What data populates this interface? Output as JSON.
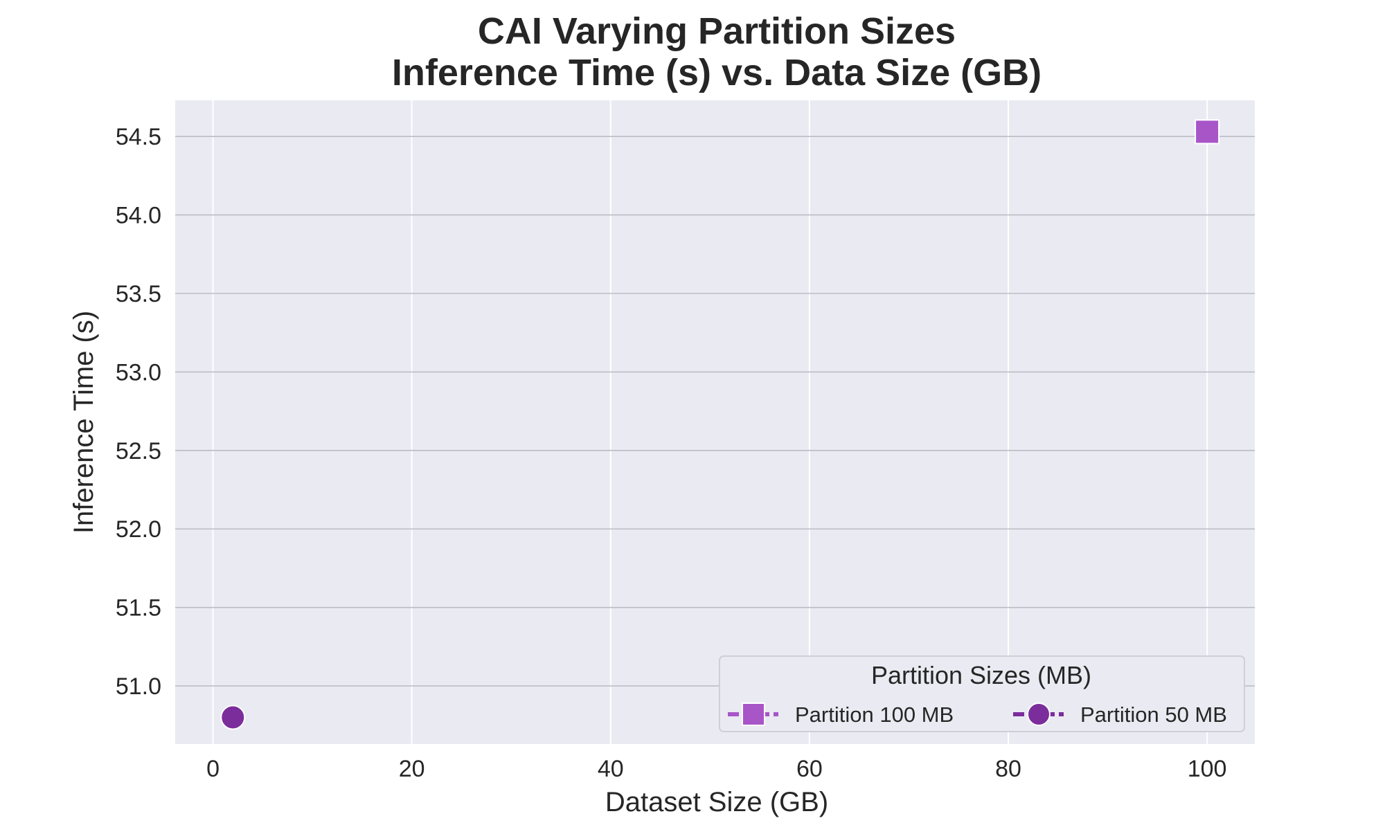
{
  "chart_data": {
    "type": "scatter",
    "title_lines": [
      "CAI Varying Partition Sizes",
      "Inference Time (s) vs. Data Size (GB)"
    ],
    "xlabel": "Dataset Size (GB)",
    "ylabel": "Inference Time (s)",
    "xlim": [
      -3.8,
      104.8
    ],
    "ylim": [
      50.63,
      54.73
    ],
    "x_ticks": [
      0,
      20,
      40,
      60,
      80,
      100
    ],
    "y_ticks": [
      51.0,
      51.5,
      52.0,
      52.5,
      53.0,
      53.5,
      54.0,
      54.5
    ],
    "x_tick_labels": [
      "0",
      "20",
      "40",
      "60",
      "80",
      "100"
    ],
    "y_tick_labels": [
      "51.0",
      "51.5",
      "52.0",
      "52.5",
      "53.0",
      "53.5",
      "54.0",
      "54.5"
    ],
    "grid": true,
    "legend": {
      "title": "Partition Sizes (MB)",
      "placement": "lower-right"
    },
    "series": [
      {
        "name": "Partition 100 MB",
        "marker": "square",
        "color": "#a855c8",
        "points": [
          {
            "x": 100,
            "y": 54.53
          }
        ]
      },
      {
        "name": "Partition 50 MB",
        "marker": "circle",
        "color": "#7b2d9c",
        "points": [
          {
            "x": 2,
            "y": 50.8
          }
        ]
      }
    ],
    "colors": {
      "plot_background": "#eaeaf2",
      "grid": "#ffffff",
      "hgrid": "#bcbcc4",
      "text": "#262626"
    }
  }
}
